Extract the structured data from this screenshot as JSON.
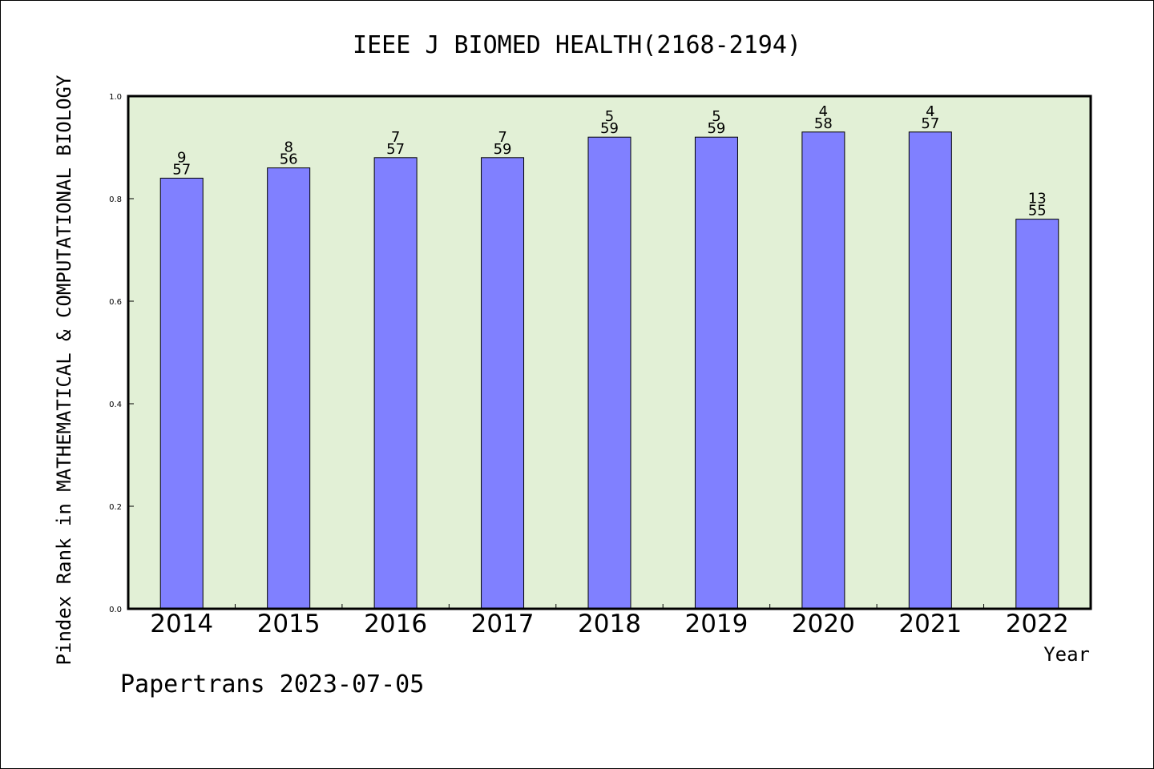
{
  "chart_data": {
    "type": "bar",
    "title": "IEEE J BIOMED HEALTH(2168-2194)",
    "ylabel": "Pindex Rank in MATHEMATICAL & COMPUTATIONAL BIOLOGY",
    "xlabel": "Year",
    "ylim": [
      0.0,
      1.0
    ],
    "yticks": [
      "0.0",
      "0.2",
      "0.4",
      "0.6",
      "0.8",
      "1.0"
    ],
    "categories": [
      "2014",
      "2015",
      "2016",
      "2017",
      "2018",
      "2019",
      "2020",
      "2021",
      "2022"
    ],
    "values": [
      0.84,
      0.86,
      0.88,
      0.88,
      0.92,
      0.92,
      0.93,
      0.93,
      0.76
    ],
    "rank_labels": [
      "9",
      "8",
      "7",
      "7",
      "5",
      "5",
      "4",
      "4",
      "13"
    ],
    "total_labels": [
      "57",
      "56",
      "57",
      "59",
      "59",
      "59",
      "58",
      "57",
      "55"
    ],
    "bar_color": "#8080ff",
    "plot_background": "#e2f0d6",
    "grid": false,
    "footer": "Papertrans 2023-07-05"
  }
}
